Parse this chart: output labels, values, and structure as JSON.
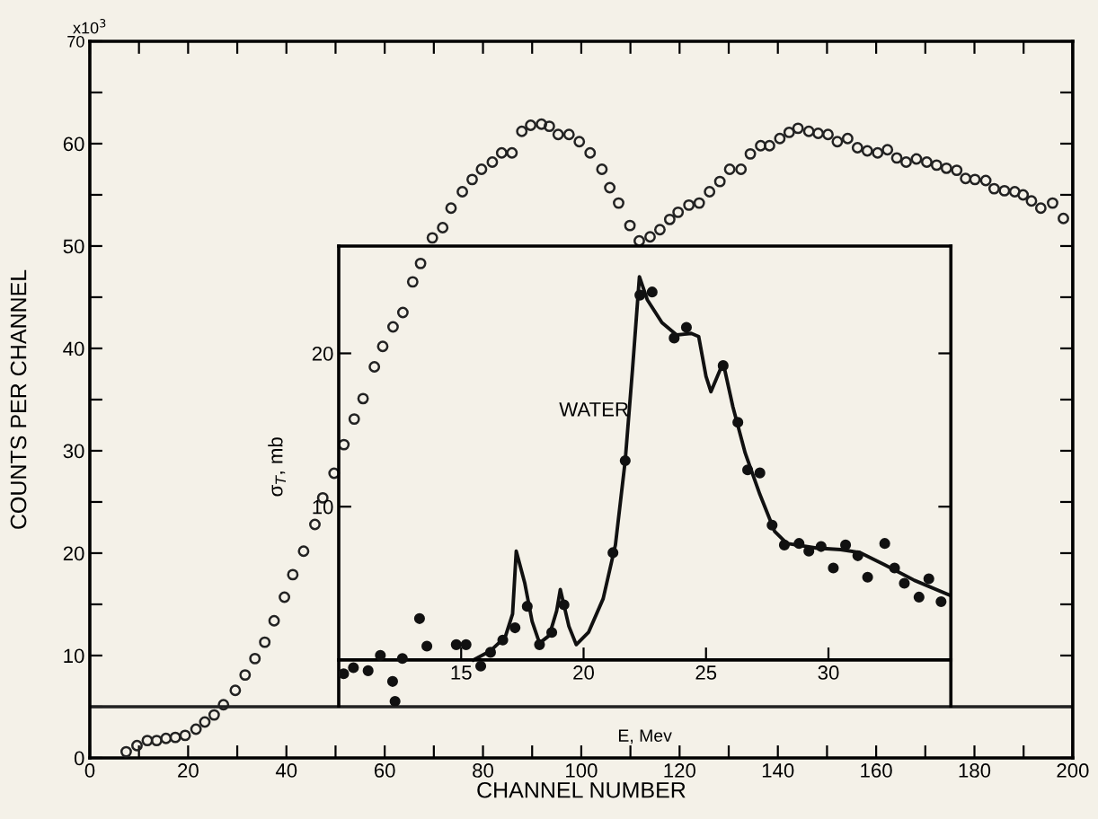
{
  "chart_data": [
    {
      "type": "scatter",
      "xlabel": "CHANNEL NUMBER",
      "ylabel": "COUNTS PER CHANNEL",
      "xlim": [
        0,
        200
      ],
      "ylim": [
        0,
        70
      ],
      "xticks": [
        0,
        {
          "value": 10,
          "label": null
        },
        20,
        {
          "value": 30,
          "label": null
        },
        40,
        {
          "value": 50,
          "label": null
        },
        60,
        {
          "value": 70,
          "label": null
        },
        80,
        {
          "value": 90,
          "label": null
        },
        100,
        {
          "value": 110,
          "label": null
        },
        120,
        {
          "value": 130,
          "label": null
        },
        140,
        {
          "value": 150,
          "label": null
        },
        160,
        {
          "value": 170,
          "label": null
        },
        180,
        {
          "value": 190,
          "label": null
        },
        200
      ],
      "yticks": [
        0,
        {
          "value": 5,
          "label": null
        },
        10,
        {
          "value": 15,
          "label": null
        },
        20,
        {
          "value": 25,
          "label": null
        },
        30,
        {
          "value": 35,
          "label": null
        },
        40,
        {
          "value": 45,
          "label": null
        },
        50,
        {
          "value": 55,
          "label": null
        },
        60,
        {
          "value": 65,
          "label": null
        },
        70
      ],
      "annotations": [
        "x10$^{3}$"
      ],
      "grid": false,
      "marker": "circle",
      "ref_lines": [
        {
          "axis": "y",
          "value": 5,
          "color": "#222222"
        }
      ],
      "series": [
        {
          "color": "#222222",
          "x": [
            7.4,
            9.6,
            11.7,
            13.6,
            15.5,
            17.4,
            19.4,
            21.6,
            23.4,
            25.3,
            27.2,
            29.6,
            31.6,
            33.6,
            35.6,
            37.5,
            39.6,
            41.3,
            43.5,
            45.8,
            47.4,
            49.7,
            51.7,
            53.8,
            55.6,
            57.9,
            59.6,
            61.7,
            63.7,
            65.7,
            67.3,
            69.7,
            71.8,
            73.5,
            75.8,
            77.8,
            79.7,
            81.9,
            83.8,
            85.9,
            87.9,
            89.7,
            91.9,
            93.5,
            95.3,
            97.5,
            99.6,
            101.8,
            104.2,
            105.8,
            107.6,
            109.9,
            111.8,
            114.0,
            116.0,
            118.0,
            119.7,
            121.9,
            124.0,
            126.1,
            128.2,
            130.2,
            132.5,
            134.4,
            136.5,
            138.3,
            140.4,
            142.3,
            144.1,
            146.3,
            148.2,
            150.2,
            152.1,
            154.2,
            156.2,
            158.2,
            160.3,
            162.3,
            164.2,
            166.1,
            168.2,
            170.3,
            172.3,
            174.3,
            176.4,
            178.2,
            180.1,
            182.3,
            184.0,
            186.1,
            188.2,
            189.9,
            191.6,
            193.5,
            195.9,
            198.1
          ],
          "values": [
            0.6,
            1.2,
            1.7,
            1.7,
            1.9,
            2.0,
            2.2,
            2.8,
            3.5,
            4.2,
            5.2,
            6.6,
            8.1,
            9.7,
            11.3,
            13.4,
            15.7,
            17.9,
            20.2,
            22.8,
            25.4,
            27.8,
            30.6,
            33.1,
            35.1,
            38.2,
            40.2,
            42.1,
            43.5,
            46.5,
            48.3,
            50.8,
            51.8,
            53.7,
            55.3,
            56.5,
            57.5,
            58.2,
            59.1,
            59.1,
            61.2,
            61.8,
            61.9,
            61.7,
            60.9,
            60.9,
            60.2,
            59.1,
            57.5,
            55.7,
            54.2,
            52.0,
            50.5,
            50.9,
            51.6,
            52.6,
            53.3,
            54.0,
            54.2,
            55.3,
            56.3,
            57.5,
            57.5,
            59.0,
            59.8,
            59.8,
            60.5,
            61.1,
            61.5,
            61.2,
            61.0,
            60.9,
            60.2,
            60.5,
            59.6,
            59.3,
            59.1,
            59.4,
            58.6,
            58.2,
            58.5,
            58.2,
            57.9,
            57.6,
            57.4,
            56.6,
            56.5,
            56.4,
            55.6,
            55.4,
            55.3,
            55.0,
            54.4,
            53.7,
            54.2,
            52.7
          ]
        }
      ]
    },
    {
      "type": "scatter",
      "xlabel": "E, Mev",
      "ylabel": "σ$_{T}$, mb",
      "xlim": [
        10,
        35
      ],
      "ylim": [
        -3,
        27
      ],
      "xticks": [
        15,
        20,
        25,
        30
      ],
      "yticks": [
        10,
        20
      ],
      "grid": false,
      "annotations": [
        "WATER"
      ],
      "series": [
        {
          "type": "scatter",
          "marker": "circle",
          "color": "#111111",
          "x": [
            10.2,
            10.6,
            11.2,
            11.7,
            12.2,
            12.3,
            12.6,
            13.3,
            13.6,
            14.8,
            15.2,
            15.8,
            16.2,
            16.7,
            17.2,
            17.7,
            18.2,
            18.7,
            19.2,
            21.2,
            21.7,
            22.3,
            22.8,
            23.7,
            24.2,
            25.7,
            26.3,
            26.7,
            27.2,
            27.7,
            28.2,
            28.8,
            29.2,
            29.7,
            30.2,
            30.7,
            31.2,
            31.6,
            32.3,
            32.7,
            33.1,
            33.7,
            34.1,
            34.6
          ],
          "values": [
            -0.9,
            -0.5,
            -0.7,
            0.3,
            -1.4,
            -2.7,
            0.1,
            2.7,
            0.9,
            1.0,
            1.0,
            -0.4,
            0.5,
            1.3,
            2.1,
            3.5,
            1.0,
            1.8,
            3.6,
            7.0,
            13.0,
            23.8,
            24.0,
            21.0,
            21.7,
            19.2,
            15.5,
            12.4,
            12.2,
            8.8,
            7.5,
            7.6,
            7.1,
            7.4,
            6.0,
            7.5,
            6.8,
            5.4,
            7.6,
            6.0,
            5.0,
            4.1,
            5.3,
            3.8
          ]
        },
        {
          "type": "line",
          "marker": "none",
          "line_style": "solid",
          "color": "#111111",
          "x": [
            15.5,
            16.2,
            16.8,
            17.1,
            17.25,
            17.6,
            17.9,
            18.2,
            18.6,
            18.9,
            19.05,
            19.4,
            19.7,
            20.2,
            20.8,
            21.3,
            21.7,
            22.0,
            22.28,
            22.6,
            23.2,
            23.8,
            24.4,
            24.7,
            25.0,
            25.2,
            25.7,
            26.1,
            26.6,
            27.2,
            27.8,
            28.3,
            29.5,
            30.5,
            31.3,
            32.3,
            33.5,
            35.0
          ],
          "values": [
            0,
            0.6,
            1.5,
            3.0,
            7.1,
            5.0,
            2.5,
            1.1,
            1.6,
            3.2,
            4.6,
            2.2,
            1.0,
            1.8,
            4.0,
            7.5,
            13.0,
            19.0,
            25.0,
            23.5,
            22.0,
            21.2,
            21.3,
            21.1,
            18.5,
            17.5,
            19.4,
            16.5,
            13.5,
            10.8,
            8.4,
            7.6,
            7.3,
            7.2,
            7.0,
            6.2,
            5.2,
            4.2
          ]
        }
      ]
    }
  ]
}
